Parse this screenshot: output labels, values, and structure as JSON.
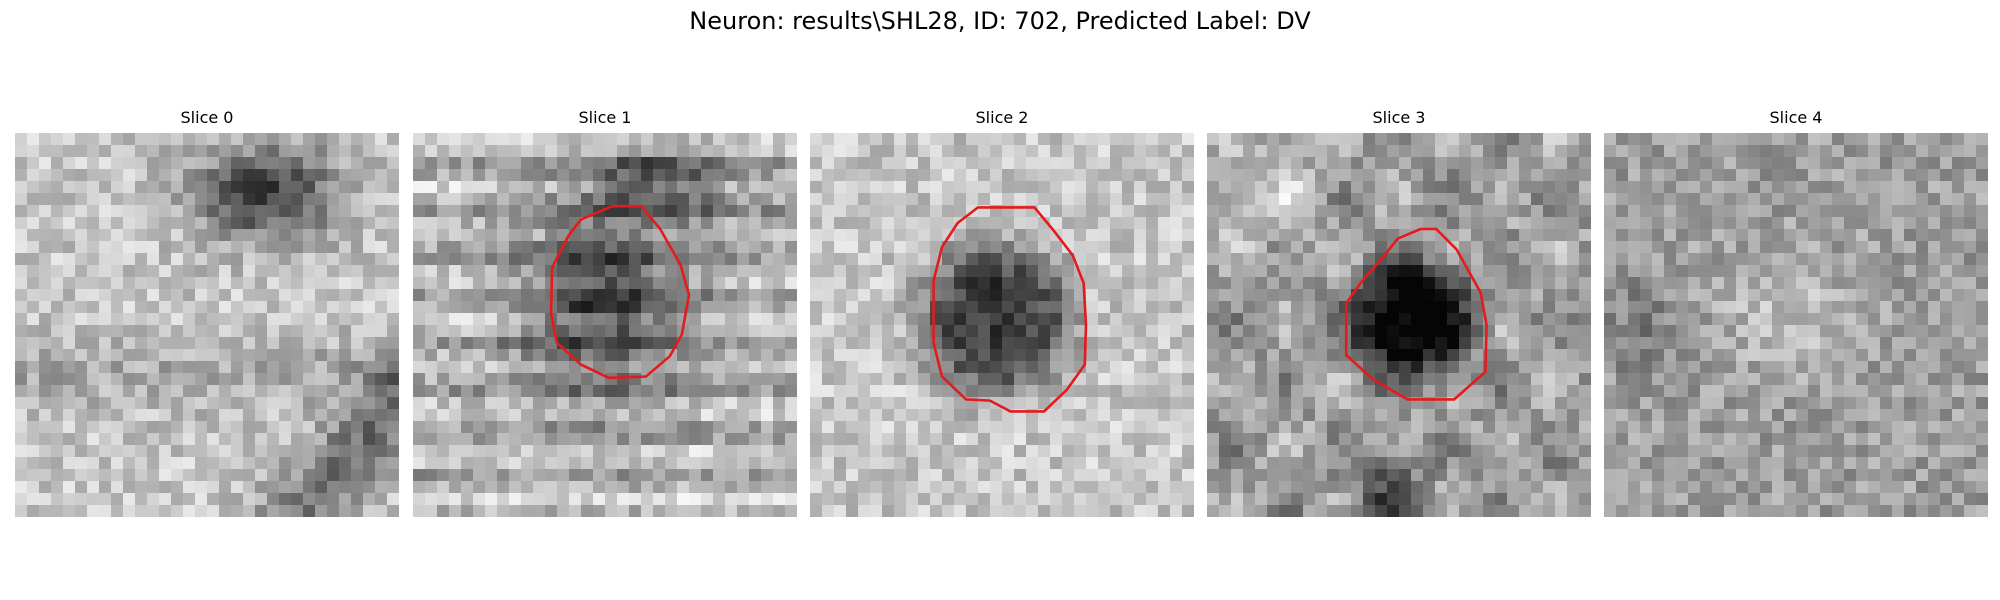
{
  "figure": {
    "title": "Neuron: results\\SHL28, ID: 702, Predicted Label: DV"
  },
  "panels": [
    {
      "title": "Slice 0",
      "has_contour": false
    },
    {
      "title": "Slice 1",
      "has_contour": true
    },
    {
      "title": "Slice 2",
      "has_contour": true
    },
    {
      "title": "Slice 3",
      "has_contour": true
    },
    {
      "title": "Slice 4",
      "has_contour": false
    }
  ],
  "colors": {
    "contour": "#e41a1c",
    "background": "#ffffff"
  }
}
